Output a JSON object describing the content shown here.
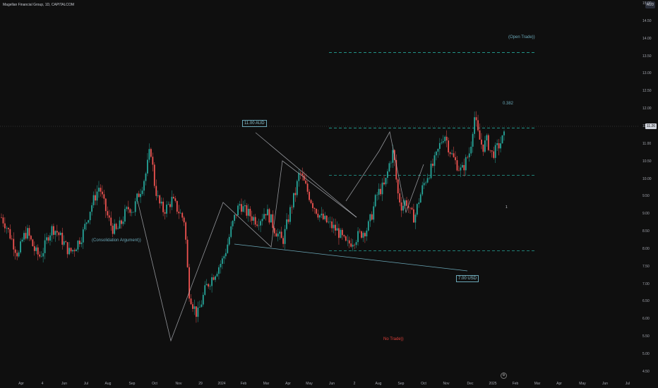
{
  "header": {
    "title": "Magellan Financial Group, 1D, CAPITALCOM",
    "currency": "AUD"
  },
  "y_axis": {
    "ticks": [
      "15.00",
      "14.50",
      "14.00",
      "13.50",
      "13.00",
      "12.50",
      "12.00",
      "11.50",
      "11.00",
      "10.50",
      "10.00",
      "9.50",
      "9.00",
      "8.50",
      "8.00",
      "7.50",
      "7.00",
      "6.50",
      "6.00",
      "5.50",
      "5.00",
      "4.50"
    ],
    "current_price": "11.26"
  },
  "x_axis": {
    "ticks": [
      "Apr",
      "4",
      "Jun",
      "Jul",
      "Aug",
      "Sep",
      "Oct",
      "Nov",
      "29",
      "2024",
      "Feb",
      "Mar",
      "Apr",
      "May",
      "Jun",
      "2",
      "Aug",
      "Sep",
      "Oct",
      "Nov",
      "Dec",
      "2025",
      "Feb",
      "Mar",
      "Apr",
      "May",
      "Jun",
      "Jul"
    ]
  },
  "annotations": {
    "open_trade": "(Open Trade))",
    "fib": "0.382",
    "aud_box": "11.00 AUD",
    "usd_box": "7.00 USD",
    "consolidation": "(Consolidation Argument))",
    "no_trade": "No Trade))",
    "marker_one": "1"
  },
  "colors": {
    "up": "#26a69a",
    "down": "#ef5350",
    "annotation_teal": "#6aa7b7",
    "no_trade": "#e0403a",
    "background": "#0f0f0f"
  },
  "chart_data": {
    "type": "candlestick",
    "price_min": 4.5,
    "price_max": 15.0,
    "levels": [
      13.6,
      11.45,
      10.1,
      7.95
    ],
    "closes": [
      8.9,
      8.7,
      8.4,
      8.1,
      7.8,
      8.3,
      8.5,
      8.2,
      7.9,
      7.8,
      8.0,
      8.4,
      8.6,
      8.5,
      8.3,
      8.1,
      7.9,
      8.0,
      8.2,
      8.4,
      8.8,
      9.2,
      9.5,
      9.8,
      9.3,
      8.9,
      8.6,
      8.5,
      8.7,
      9.0,
      9.2,
      9.1,
      9.5,
      9.8,
      10.2,
      10.9,
      9.8,
      9.3,
      9.1,
      9.2,
      9.4,
      9.2,
      9.0,
      8.8,
      6.8,
      6.4,
      6.1,
      6.5,
      6.9,
      7.1,
      7.3,
      7.5,
      7.7,
      8.1,
      8.6,
      9.0,
      9.3,
      9.1,
      9.0,
      8.9,
      8.8,
      8.9,
      9.1,
      8.9,
      8.6,
      8.4,
      8.2,
      8.7,
      9.2,
      9.6,
      10.2,
      9.9,
      9.6,
      9.3,
      9.1,
      8.9,
      8.8,
      8.7,
      8.6,
      8.5,
      8.3,
      8.1,
      8.2,
      8.3,
      8.4,
      8.5,
      8.6,
      9.0,
      9.5,
      9.7,
      9.8,
      10.4,
      10.8,
      9.6,
      9.2,
      9.4,
      9.0,
      8.9,
      9.4,
      9.8,
      10.1,
      10.3,
      10.6,
      11.0,
      11.3,
      10.9,
      10.6,
      10.4,
      10.2,
      10.5,
      10.8,
      11.8,
      11.2,
      10.9,
      11.1,
      10.7,
      10.8,
      11.0,
      11.2
    ],
    "candle_x_start": 2,
    "candle_x_end": 714
  }
}
